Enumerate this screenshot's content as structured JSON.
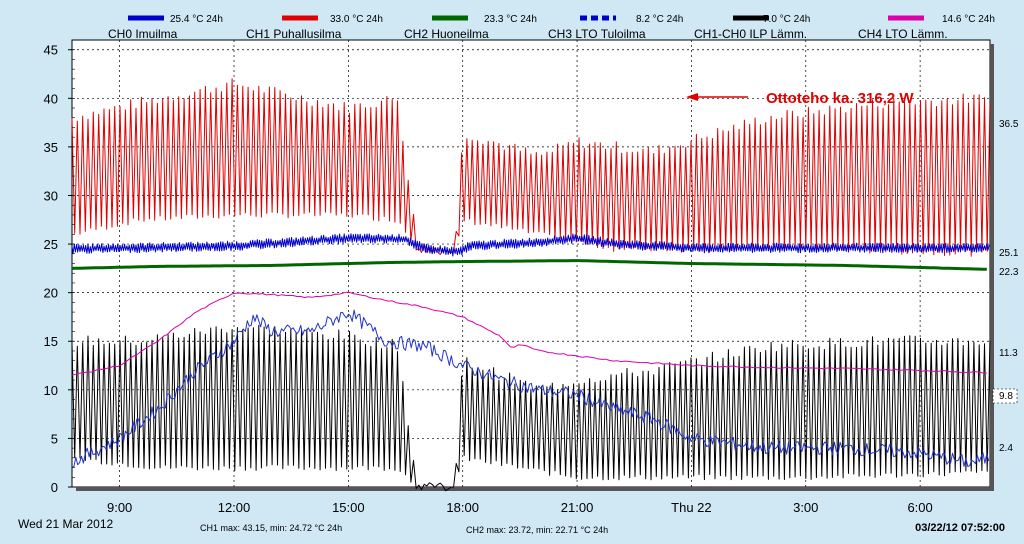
{
  "chart_data": {
    "type": "line",
    "y_axis": {
      "min": 0,
      "max": 46,
      "ticks": [
        0,
        5,
        10,
        15,
        20,
        25,
        30,
        35,
        40,
        45
      ]
    },
    "x_axis": {
      "start": "2012-03-21 07:45",
      "end": "2012-03-22 07:50",
      "tick_labels": [
        {
          "t": "2012-03-21 09:00",
          "label": "9:00"
        },
        {
          "t": "2012-03-21 12:00",
          "label": "12:00"
        },
        {
          "t": "2012-03-21 15:00",
          "label": "15:00"
        },
        {
          "t": "2012-03-21 18:00",
          "label": "18:00"
        },
        {
          "t": "2012-03-21 21:00",
          "label": "21:00"
        },
        {
          "t": "2012-03-22 00:00",
          "label": "Thu 22"
        },
        {
          "t": "2012-03-22 03:00",
          "label": "3:00"
        },
        {
          "t": "2012-03-22 06:00",
          "label": "6:00"
        }
      ]
    },
    "legend": [
      {
        "key": "ch0",
        "value": "25.4 °C 24h",
        "name": "CH0 Imuilma",
        "color": "#0000cc",
        "dashed": false
      },
      {
        "key": "ch1",
        "value": "33.0 °C 24h",
        "name": "CH1 Puhallusilma",
        "color": "#e00000",
        "dashed": false
      },
      {
        "key": "ch2",
        "value": "23.3 °C 24h",
        "name": "CH2 Huoneilma",
        "color": "#006600",
        "dashed": false
      },
      {
        "key": "ch3",
        "value": "8.2 °C 24h",
        "name": "CH3 LTO Tuloilma",
        "color": "#0000cc",
        "dashed": true
      },
      {
        "key": "ilp",
        "value": "7.0 °C 24h",
        "name": "CH1-CH0 ILP Lämm.",
        "color": "#000000",
        "dashed": false
      },
      {
        "key": "ch4",
        "value": "14.6 °C 24h",
        "name": "CH4 LTO Lämm.",
        "color": "#dd00aa",
        "dashed": false
      }
    ],
    "series": [
      {
        "key": "ch1",
        "color": "#e00000",
        "kind": "osc",
        "low": [
          [
            7.75,
            26
          ],
          [
            9.5,
            27.5
          ],
          [
            12,
            28
          ],
          [
            15,
            28
          ],
          [
            16.3,
            27.5
          ],
          [
            16.8,
            24.5
          ],
          [
            17.8,
            24
          ],
          [
            18,
            27.5
          ],
          [
            20,
            26
          ],
          [
            22,
            24.5
          ],
          [
            24,
            24.5
          ],
          [
            27,
            24.5
          ],
          [
            31.8,
            24
          ]
        ],
        "high": [
          [
            7.75,
            38
          ],
          [
            9.5,
            39.5
          ],
          [
            12,
            41.5
          ],
          [
            15,
            39
          ],
          [
            16.3,
            40
          ],
          [
            16.8,
            25
          ],
          [
            17.8,
            24.2
          ],
          [
            18,
            36.5
          ],
          [
            20,
            34
          ],
          [
            21,
            35.5
          ],
          [
            23,
            34.5
          ],
          [
            26,
            38
          ],
          [
            29,
            39.5
          ],
          [
            31.8,
            40
          ]
        ],
        "period": 0.14
      },
      {
        "key": "ilp",
        "color": "#000000",
        "kind": "osc",
        "low": [
          [
            7.75,
            3
          ],
          [
            10,
            2
          ],
          [
            13,
            2
          ],
          [
            16.3,
            2
          ],
          [
            16.8,
            0
          ],
          [
            17.8,
            0
          ],
          [
            18,
            3
          ],
          [
            21,
            1
          ],
          [
            24,
            1
          ],
          [
            27,
            1
          ],
          [
            31.8,
            1.5
          ]
        ],
        "high": [
          [
            7.75,
            15
          ],
          [
            9.5,
            15
          ],
          [
            12,
            16.5
          ],
          [
            15,
            15.5
          ],
          [
            16.3,
            14.5
          ],
          [
            16.8,
            0.2
          ],
          [
            17.8,
            0.2
          ],
          [
            18,
            13
          ],
          [
            20,
            10
          ],
          [
            21,
            11
          ],
          [
            23,
            12
          ],
          [
            26,
            14.5
          ],
          [
            29,
            15
          ],
          [
            31.8,
            15
          ]
        ],
        "period": 0.14
      },
      {
        "key": "ch0",
        "color": "#0000cc",
        "kind": "band",
        "values": [
          [
            7.75,
            24.5
          ],
          [
            12,
            24.8
          ],
          [
            15,
            25.6
          ],
          [
            16.5,
            25.5
          ],
          [
            17,
            24.5
          ],
          [
            17.9,
            24.2
          ],
          [
            18.2,
            24.8
          ],
          [
            20,
            25.2
          ],
          [
            21,
            25.6
          ],
          [
            22,
            25
          ],
          [
            24,
            24.6
          ],
          [
            31.8,
            24.6
          ]
        ],
        "amp": 0.5
      },
      {
        "key": "ch2",
        "color": "#006600",
        "kind": "thick",
        "values": [
          [
            7.75,
            22.5
          ],
          [
            10,
            22.7
          ],
          [
            13,
            22.8
          ],
          [
            16,
            23.1
          ],
          [
            18,
            23.2
          ],
          [
            21,
            23.3
          ],
          [
            24,
            23
          ],
          [
            28,
            22.8
          ],
          [
            31.8,
            22.4
          ]
        ]
      },
      {
        "key": "ch4",
        "color": "#dd00aa",
        "kind": "line",
        "values": [
          [
            7.75,
            11.5
          ],
          [
            9,
            12.5
          ],
          [
            10,
            15
          ],
          [
            11,
            18
          ],
          [
            12,
            20
          ],
          [
            13,
            19.8
          ],
          [
            14,
            19.5
          ],
          [
            15,
            20
          ],
          [
            16,
            19.2
          ],
          [
            17,
            18.5
          ],
          [
            18,
            17.5
          ],
          [
            19,
            15.5
          ],
          [
            19.3,
            14.2
          ],
          [
            19.5,
            14.7
          ],
          [
            20,
            14
          ],
          [
            22,
            13
          ],
          [
            24,
            12.5
          ],
          [
            26,
            12.3
          ],
          [
            28,
            12.2
          ],
          [
            30,
            12
          ],
          [
            31.5,
            11.8
          ]
        ]
      },
      {
        "key": "ch3",
        "color": "#2233cc",
        "kind": "noisy",
        "values": [
          [
            7.75,
            2.5
          ],
          [
            9,
            5
          ],
          [
            10,
            8
          ],
          [
            11,
            12
          ],
          [
            12,
            15
          ],
          [
            12.5,
            17.5
          ],
          [
            13,
            16
          ],
          [
            14,
            16
          ],
          [
            14.5,
            17
          ],
          [
            15,
            18
          ],
          [
            16,
            15
          ],
          [
            17,
            14.5
          ],
          [
            18,
            12.5
          ],
          [
            19,
            11
          ],
          [
            20,
            10
          ],
          [
            21,
            9.5
          ],
          [
            22,
            8
          ],
          [
            23,
            7
          ],
          [
            24,
            5
          ],
          [
            26,
            4
          ],
          [
            28,
            4
          ],
          [
            30,
            3.5
          ],
          [
            31.3,
            2.5
          ],
          [
            31.8,
            3
          ]
        ],
        "amp": 0.7
      }
    ],
    "right_axis_labels": [
      "36.5",
      "25.1",
      "22.3",
      "11.3",
      "9.8",
      "2.4"
    ],
    "annotation": "Ottoteho ka. 316,2 W"
  },
  "footer": {
    "date": "Wed 21 Mar 2012",
    "ch1_stats": "CH1 max: 43.15, min: 24.72 °C 24h",
    "ch2_stats": "CH2 max: 23.72, min: 22.71 °C 24h",
    "timestamp": "03/22/12 07:52:00"
  }
}
